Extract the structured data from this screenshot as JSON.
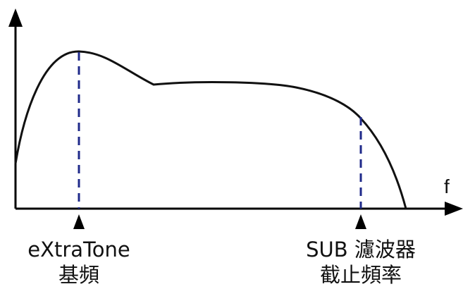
{
  "diagram": {
    "axis_x_label": "f",
    "markers": [
      {
        "line1": "eXtraTone",
        "line2": "基頻"
      },
      {
        "line1": "SUB 濾波器",
        "line2": "截止頻率"
      }
    ]
  },
  "colors": {
    "axis": "#000000",
    "curve": "#111111",
    "marker_line": "#1f2a8a",
    "text": "#111111"
  }
}
